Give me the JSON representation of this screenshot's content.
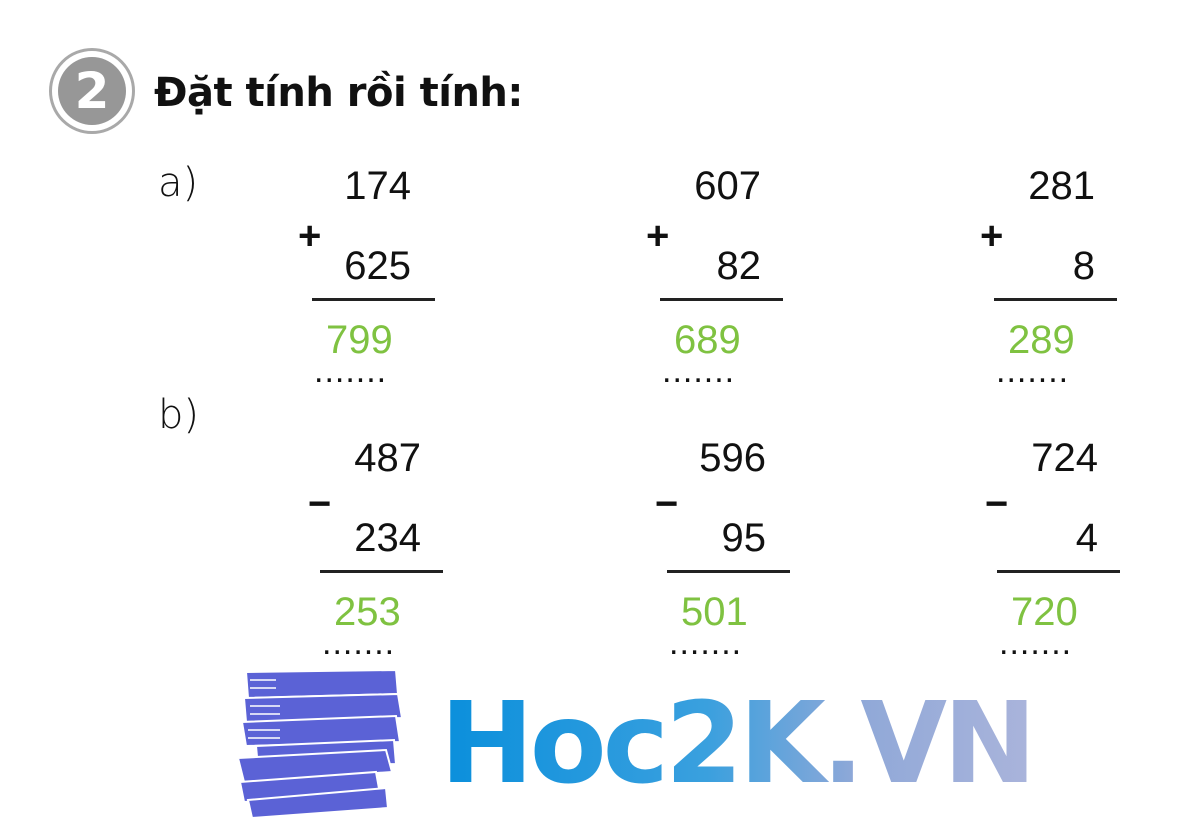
{
  "exercise": {
    "number": "2",
    "title": "Đặt tính rồi tính:"
  },
  "parts": [
    {
      "label": "a)",
      "operator": "+",
      "problems": [
        {
          "top": "174",
          "bottom": "625",
          "dots": ".......",
          "answer": "799"
        },
        {
          "top": "607",
          "bottom": "82",
          "dots": ".......",
          "answer": "689"
        },
        {
          "top": "281",
          "bottom": "8",
          "dots": ".......",
          "answer": "289"
        }
      ]
    },
    {
      "label": "b)",
      "operator": "−",
      "problems": [
        {
          "top": "487",
          "bottom": "234",
          "dots": ".......",
          "answer": "253"
        },
        {
          "top": "596",
          "bottom": "95",
          "dots": ".......",
          "answer": "501"
        },
        {
          "top": "724",
          "bottom": "4",
          "dots": ".......",
          "answer": "720"
        }
      ]
    }
  ],
  "colors": {
    "answer": "#7fc241",
    "badge": "#979797",
    "logo_books": "#5b62d6"
  },
  "logo": {
    "text": "Hoc2K.VN",
    "icon": "books-stack-icon"
  }
}
